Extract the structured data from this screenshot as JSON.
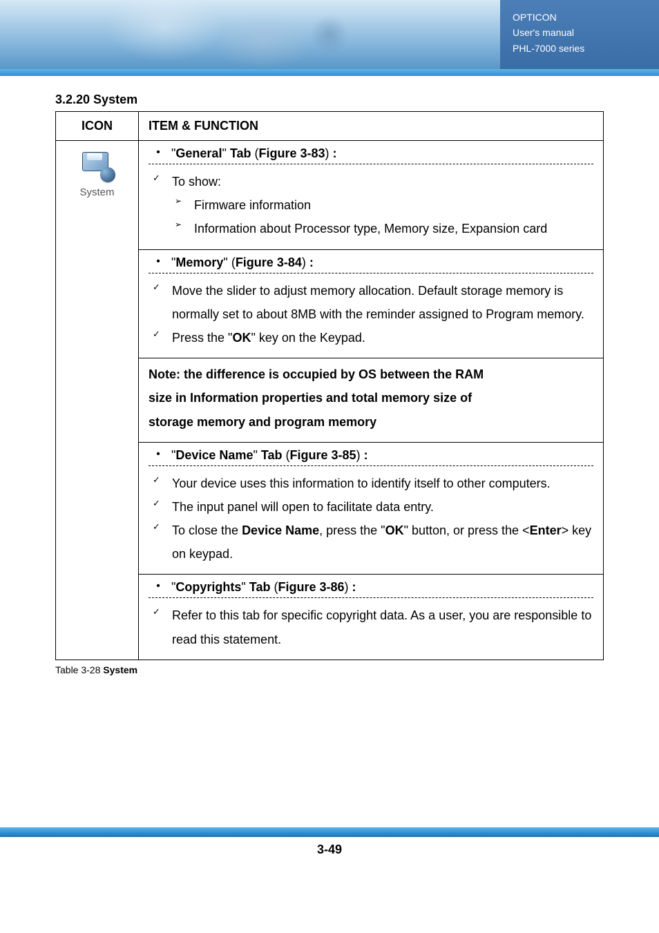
{
  "banner": {
    "line1": "OPTICON",
    "line2": "User's manual",
    "line3": "PHL-7000 series"
  },
  "section_heading": "3.2.20 System",
  "table": {
    "header_icon": "ICON",
    "header_item": "ITEM & FUNCTION",
    "icon_label": "System",
    "tabs": {
      "general": {
        "title_prefix": "\"",
        "title_bold": "General",
        "title_mid": "\" ",
        "tab_bold": "Tab",
        "paren_open": " (",
        "fig_bold": "Figure 3-83",
        "paren_close": ") ",
        "colon": ":",
        "items": {
          "to_show": "To show:",
          "firmware": "Firmware information",
          "proc_info": "Information about Processor type, Memory size, Expansion card"
        }
      },
      "memory": {
        "title_bold": "Memory",
        "fig_bold": "Figure 3-84",
        "items": {
          "move_slider": "Move the slider to adjust memory allocation. Default storage memory is normally set to about 8MB with the reminder assigned to Program memory.",
          "press_ok_pre": "Press the \"",
          "ok_bold": "OK",
          "press_ok_post": "\" key on the Keypad."
        },
        "note_l1": "Note: the difference is occupied by OS between the RAM",
        "note_l2": "size in Information properties and total memory size of",
        "note_l3": "storage memory and program memory"
      },
      "device": {
        "title_bold": "Device Name",
        "fig_bold": "Figure 3-85",
        "items": {
          "identify": "Your device uses this information to identify itself to other computers.",
          "input_panel": "The input panel will open to facilitate data entry.",
          "close_pre": "To close the ",
          "device_name_bold": "Device Name",
          "close_mid": ", press the \"",
          "ok_bold": "OK",
          "close_post1": "\" button, or press the <",
          "enter_bold": "Enter",
          "close_post2": "> key on keypad."
        }
      },
      "copyrights": {
        "title_bold": "Copyrights",
        "fig_bold": "Figure 3-86",
        "items": {
          "refer": "Refer to this tab for specific copyright data. As a user, you are responsible to read this statement."
        }
      }
    }
  },
  "caption_pre": "Table 3-28 ",
  "caption_bold": "System",
  "page_number": "3-49"
}
